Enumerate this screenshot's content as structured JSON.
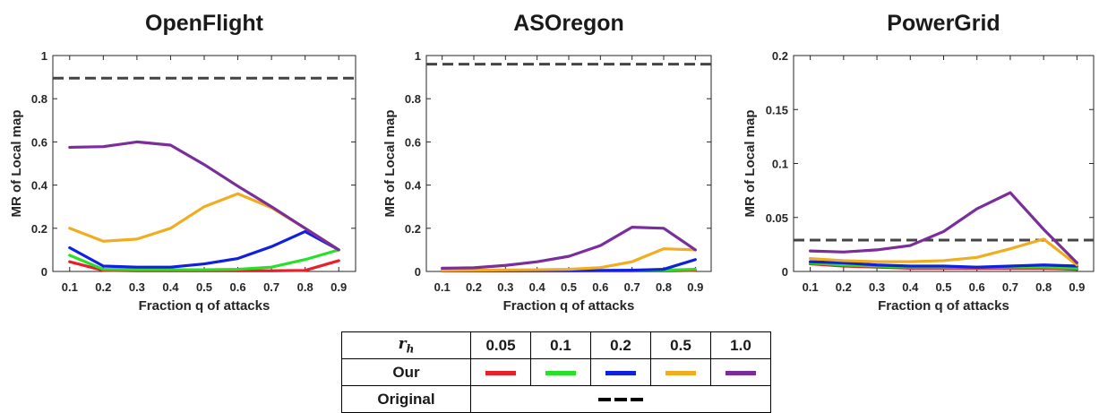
{
  "chart_data": [
    {
      "type": "line",
      "title": "OpenFlight",
      "xlabel": "Fraction q of attacks",
      "ylabel": "MR of Local map",
      "x": [
        0.1,
        0.2,
        0.3,
        0.4,
        0.5,
        0.6,
        0.7,
        0.8,
        0.9
      ],
      "xticks": [
        "0.1",
        "0.2",
        "0.3",
        "0.4",
        "0.5",
        "0.6",
        "0.7",
        "0.8",
        "0.9"
      ],
      "xlim": [
        0.05,
        0.95
      ],
      "ylim": [
        0,
        1
      ],
      "yticks": [
        0,
        0.2,
        0.4,
        0.6,
        0.8,
        1
      ],
      "ytick_labels": [
        "0",
        "0.2",
        "0.4",
        "0.6",
        "0.8",
        "1"
      ],
      "original": 0.895,
      "series": [
        {
          "color": "#e8202a",
          "values": [
            0.045,
            0.005,
            0.003,
            0.003,
            0.003,
            0.003,
            0.003,
            0.005,
            0.05
          ]
        },
        {
          "color": "#28e028",
          "values": [
            0.075,
            0.01,
            0.008,
            0.008,
            0.008,
            0.01,
            0.02,
            0.055,
            0.1
          ]
        },
        {
          "color": "#1020e0",
          "values": [
            0.11,
            0.025,
            0.02,
            0.02,
            0.035,
            0.06,
            0.115,
            0.185,
            0.1
          ]
        },
        {
          "color": "#f0ad20",
          "values": [
            0.2,
            0.14,
            0.15,
            0.2,
            0.3,
            0.36,
            0.295,
            0.2,
            0.1
          ]
        },
        {
          "color": "#7b2d9b",
          "values": [
            0.575,
            0.578,
            0.6,
            0.585,
            0.495,
            0.395,
            0.3,
            0.2,
            0.1
          ]
        }
      ]
    },
    {
      "type": "line",
      "title": "ASOregon",
      "xlabel": "Fraction q of attacks",
      "ylabel": "MR of Local map",
      "x": [
        0.1,
        0.2,
        0.3,
        0.4,
        0.5,
        0.6,
        0.7,
        0.8,
        0.9
      ],
      "xticks": [
        "0.1",
        "0.2",
        "0.3",
        "0.4",
        "0.5",
        "0.6",
        "0.7",
        "0.8",
        "0.9"
      ],
      "xlim": [
        0.05,
        0.95
      ],
      "ylim": [
        0,
        1
      ],
      "yticks": [
        0,
        0.2,
        0.4,
        0.6,
        0.8,
        1
      ],
      "ytick_labels": [
        "0",
        "0.2",
        "0.4",
        "0.6",
        "0.8",
        "1"
      ],
      "original": 0.96,
      "series": [
        {
          "color": "#e8202a",
          "values": [
            0.002,
            0.002,
            0.002,
            0.002,
            0.002,
            0.002,
            0.002,
            0.003,
            0.005
          ]
        },
        {
          "color": "#28e028",
          "values": [
            0.003,
            0.003,
            0.003,
            0.003,
            0.003,
            0.003,
            0.004,
            0.006,
            0.01
          ]
        },
        {
          "color": "#1020e0",
          "values": [
            0.004,
            0.004,
            0.004,
            0.004,
            0.004,
            0.005,
            0.006,
            0.01,
            0.055
          ]
        },
        {
          "color": "#f0ad20",
          "values": [
            0.005,
            0.006,
            0.007,
            0.008,
            0.01,
            0.018,
            0.045,
            0.105,
            0.1
          ]
        },
        {
          "color": "#7b2d9b",
          "values": [
            0.015,
            0.017,
            0.028,
            0.045,
            0.07,
            0.12,
            0.205,
            0.2,
            0.1
          ]
        }
      ]
    },
    {
      "type": "line",
      "title": "PowerGrid",
      "xlabel": "Fraction q of attacks",
      "ylabel": "MR of Local map",
      "x": [
        0.1,
        0.2,
        0.3,
        0.4,
        0.5,
        0.6,
        0.7,
        0.8,
        0.9
      ],
      "xticks": [
        "0.1",
        "0.2",
        "0.3",
        "0.4",
        "0.5",
        "0.6",
        "0.7",
        "0.8",
        "0.9"
      ],
      "xlim": [
        0.05,
        0.95
      ],
      "ylim": [
        0,
        0.2
      ],
      "yticks": [
        0,
        0.05,
        0.1,
        0.15,
        0.2
      ],
      "ytick_labels": [
        "0",
        "0.05",
        "0.1",
        "0.15",
        "0.2"
      ],
      "original": 0.029,
      "series": [
        {
          "color": "#e8202a",
          "values": [
            0.007,
            0.005,
            0.004,
            0.003,
            0.003,
            0.003,
            0.003,
            0.003,
            0.002
          ]
        },
        {
          "color": "#28e028",
          "values": [
            0.008,
            0.006,
            0.005,
            0.004,
            0.004,
            0.004,
            0.004,
            0.004,
            0.003
          ]
        },
        {
          "color": "#1020e0",
          "values": [
            0.009,
            0.008,
            0.006,
            0.005,
            0.005,
            0.004,
            0.005,
            0.006,
            0.005
          ]
        },
        {
          "color": "#f0ad20",
          "values": [
            0.012,
            0.01,
            0.009,
            0.009,
            0.01,
            0.013,
            0.021,
            0.03,
            0.006
          ]
        },
        {
          "color": "#7b2d9b",
          "values": [
            0.019,
            0.018,
            0.02,
            0.024,
            0.037,
            0.058,
            0.073,
            0.039,
            0.008
          ]
        }
      ]
    }
  ],
  "legend": {
    "header": "r",
    "header_sub": "h",
    "values": [
      "0.05",
      "0.1",
      "0.2",
      "0.5",
      "1.0"
    ],
    "our_label": "Our",
    "original_label": "Original",
    "colors": [
      "#e8202a",
      "#28e028",
      "#1020e0",
      "#f0ad20",
      "#7b2d9b"
    ]
  }
}
